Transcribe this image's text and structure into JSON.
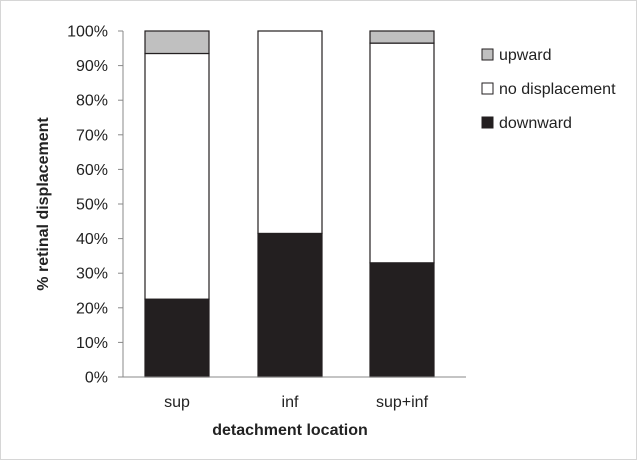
{
  "chart_data": {
    "type": "bar",
    "stacked": true,
    "categories": [
      "sup",
      "inf",
      "sup+inf"
    ],
    "series": [
      {
        "name": "downward",
        "values": [
          22.5,
          41.5,
          33
        ],
        "color": "#231f20"
      },
      {
        "name": "no displacement",
        "values": [
          71,
          58.5,
          63.5
        ],
        "color": "#ffffff"
      },
      {
        "name": "upward",
        "values": [
          6.5,
          0,
          3.5
        ],
        "color": "#c0c0c0"
      }
    ],
    "xlabel": "detachment location",
    "ylabel": "% retinal displacement",
    "ylim": [
      0,
      100
    ],
    "yticks": [
      "0%",
      "10%",
      "20%",
      "30%",
      "40%",
      "50%",
      "60%",
      "70%",
      "80%",
      "90%",
      "100%"
    ],
    "legend": {
      "position": "right",
      "order": [
        "upward",
        "no displacement",
        "downward"
      ]
    },
    "grid": false
  }
}
